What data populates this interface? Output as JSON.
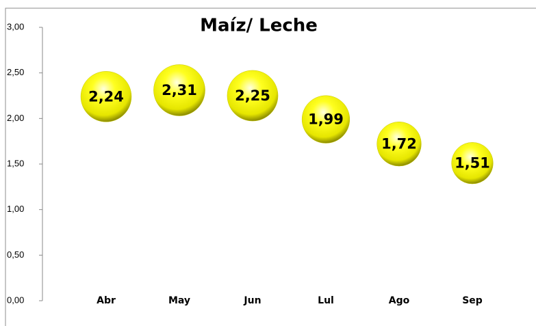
{
  "chart_data": {
    "type": "bubble",
    "title": "Maíz/ Leche",
    "categories": [
      "Abr",
      "May",
      "Jun",
      "Lul",
      "Ago",
      "Sep"
    ],
    "values": [
      2.24,
      2.31,
      2.25,
      1.99,
      1.72,
      1.51
    ],
    "value_labels": [
      "2,24",
      "2,31",
      "2,25",
      "1,99",
      "1,72",
      "1,51"
    ],
    "color": "#ffff00",
    "ylim": [
      0,
      3
    ],
    "yticks": [
      {
        "value": 0,
        "label": "0,00"
      },
      {
        "value": 0.5,
        "label": "0,50"
      },
      {
        "value": 1,
        "label": "1,00"
      },
      {
        "value": 1.5,
        "label": "1,50"
      },
      {
        "value": 2,
        "label": "2,00"
      },
      {
        "value": 2.5,
        "label": "2,50"
      },
      {
        "value": 3,
        "label": "3,00"
      }
    ]
  }
}
